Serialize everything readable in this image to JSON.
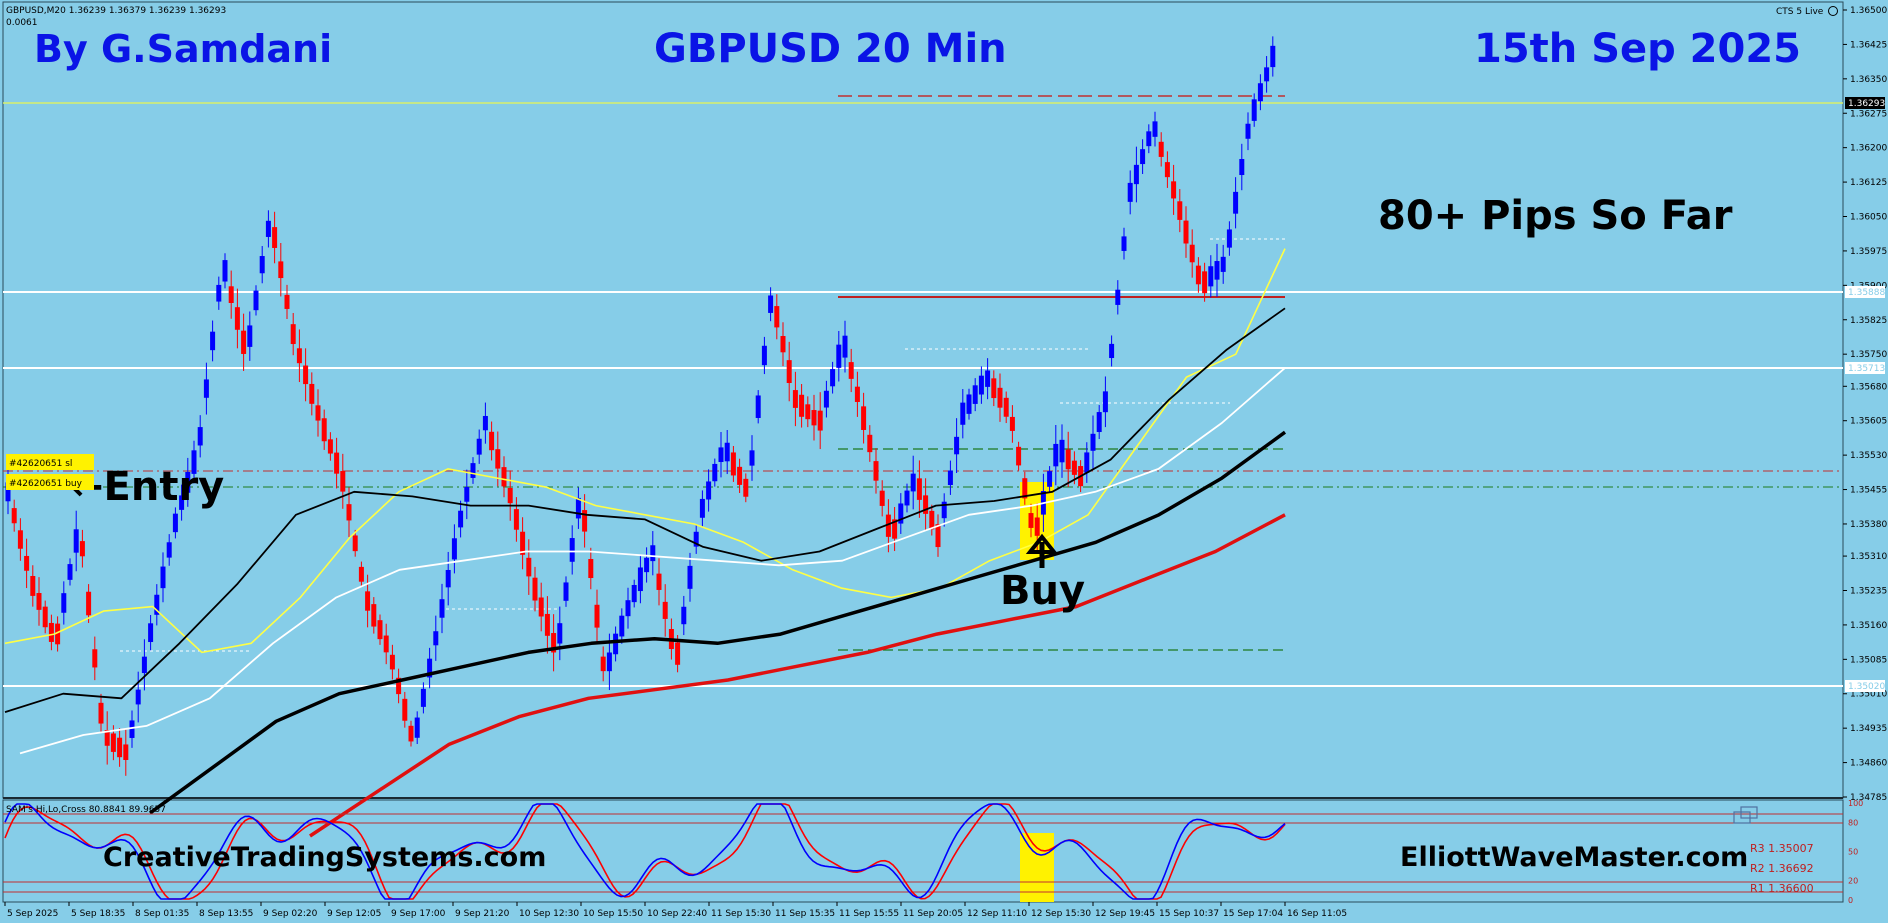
{
  "header": {
    "symbol_line": "GBPUSD,M20  1.36239 1.36379 1.36239 1.36293",
    "spread_line": "0.0061",
    "broker_label": "CTS 5 Live"
  },
  "overlay": {
    "author": "By G.Samdani",
    "title": "GBPUSD 20 Min",
    "date": "15th Sep 2025",
    "pips": "80+ Pips So Far",
    "entry": "←Entry",
    "buy": "Buy",
    "website_left": "CreativeTradingSystems.com",
    "website_right": "ElliottWaveMaster.com",
    "order_sl": "#42620651 sl",
    "order_buy": "#42620651 buy",
    "indicator_label": "SAM's Hi,Lo,Cross 80.8841 89.9657"
  },
  "colors": {
    "background": "#86CDE8",
    "bull": "#0000FF",
    "bear": "#FF0000",
    "ma_yellow": "#FFFF44",
    "ma_black": "#000000",
    "ma_white": "#FFFFFF",
    "ma_red": "#E01010",
    "title_blue": "#0A14E6"
  },
  "chart_data": {
    "type": "line",
    "instrument": "GBPUSD",
    "timeframe": "M20",
    "x_labels": [
      "5 Sep 2025",
      "5 Sep 18:35",
      "8 Sep 01:35",
      "8 Sep 13:55",
      "9 Sep 02:20",
      "9 Sep 12:05",
      "9 Sep 17:00",
      "9 Sep 21:20",
      "10 Sep 12:30",
      "10 Sep 15:50",
      "10 Sep 22:40",
      "11 Sep 15:30",
      "11 Sep 15:35",
      "11 Sep 15:55",
      "11 Sep 20:05",
      "12 Sep 11:10",
      "12 Sep 15:30",
      "12 Sep 19:45",
      "15 Sep 10:37",
      "15 Sep 17:04",
      "16 Sep 11:05"
    ],
    "y_ticks": [
      "1.36500",
      "1.36425",
      "1.36350",
      "1.36275",
      "1.36200",
      "1.36125",
      "1.36050",
      "1.35975",
      "1.35900",
      "1.35825",
      "1.35750",
      "1.35680",
      "1.35605",
      "1.35530",
      "1.35455",
      "1.35380",
      "1.35310",
      "1.35235",
      "1.35160",
      "1.35085",
      "1.35010",
      "1.34935",
      "1.34860",
      "1.34785"
    ],
    "ylim": [
      1.34785,
      1.365
    ],
    "current_price": "1.36293",
    "horizontal_levels": [
      "1.35888",
      "1.35713",
      "1.35020"
    ],
    "price_path": [
      1.3545,
      1.3525,
      1.3512,
      1.3538,
      1.3492,
      1.3488,
      1.3515,
      1.3538,
      1.3555,
      1.3595,
      1.3575,
      1.3605,
      1.3578,
      1.3562,
      1.3548,
      1.3522,
      1.351,
      1.349,
      1.3515,
      1.354,
      1.356,
      1.3545,
      1.3525,
      1.351,
      1.3545,
      1.3505,
      1.352,
      1.3532,
      1.3508,
      1.354,
      1.3555,
      1.3545,
      1.3588,
      1.3565,
      1.356,
      1.3578,
      1.3558,
      1.3535,
      1.3548,
      1.3535,
      1.3562,
      1.357,
      1.3562,
      1.3535,
      1.3555,
      1.3548,
      1.3565,
      1.361,
      1.3625,
      1.3608,
      1.359,
      1.3595,
      1.3625,
      1.364
    ],
    "ma_yellow": [
      1.3512,
      1.3514,
      1.3519,
      1.352,
      1.351,
      1.3512,
      1.3522,
      1.3535,
      1.3545,
      1.355,
      1.3548,
      1.3546,
      1.3542,
      1.354,
      1.3538,
      1.3534,
      1.3528,
      1.3524,
      1.3522,
      1.3524,
      1.353,
      1.3534,
      1.354,
      1.3555,
      1.357,
      1.3575,
      1.3598
    ],
    "ma_black_thin": [
      1.3497,
      1.3501,
      1.35,
      1.3512,
      1.3525,
      1.354,
      1.3545,
      1.3544,
      1.3542,
      1.3542,
      1.354,
      1.3539,
      1.3533,
      1.353,
      1.3532,
      1.3537,
      1.3542,
      1.3543,
      1.3545,
      1.3552,
      1.3565,
      1.3576,
      1.3585
    ],
    "ma_white": [
      1.3488,
      1.3492,
      1.3494,
      1.35,
      1.3512,
      1.3522,
      1.3528,
      1.353,
      1.3532,
      1.3532,
      1.3531,
      1.353,
      1.3529,
      1.353,
      1.3535,
      1.354,
      1.3542,
      1.3545,
      1.355,
      1.356,
      1.3572
    ],
    "ma_black_thick": [
      1.3475,
      1.3485,
      1.3495,
      1.3501,
      1.3504,
      1.3507,
      1.351,
      1.3512,
      1.3513,
      1.3512,
      1.3514,
      1.3518,
      1.3522,
      1.3526,
      1.353,
      1.3534,
      1.354,
      1.3548,
      1.3558
    ],
    "ma_red": [
      1.347,
      1.348,
      1.349,
      1.3496,
      1.35,
      1.3502,
      1.3504,
      1.3507,
      1.351,
      1.3514,
      1.3517,
      1.352,
      1.3526,
      1.3532,
      1.354
    ],
    "oscillator_y_ticks": [
      "100",
      "80",
      "50",
      "20",
      "0"
    ],
    "oscillator_levels": [
      "R3  1.35007",
      "R2  1.36692",
      "R1  1.36600"
    ]
  }
}
